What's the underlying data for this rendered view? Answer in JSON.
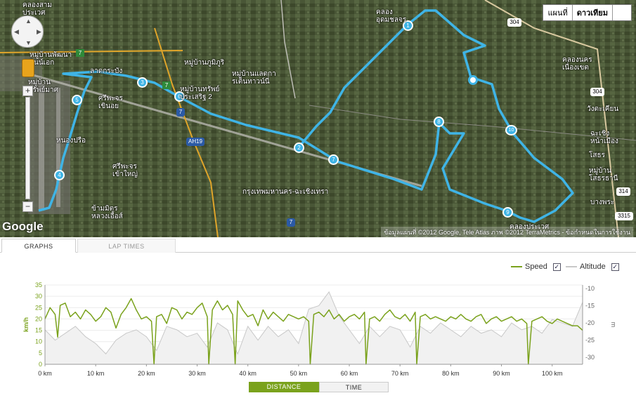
{
  "map": {
    "type_buttons": [
      "แผนที่",
      "ดาวเทียม"
    ],
    "active_type": "ดาวเทียม",
    "logo": "Google",
    "copyright": "ข้อมูลแผนที่ ©2012 Google, Tele Atlas ภาพ ©2012 TerraMetrics - ข้อกำหนดในการใช้งาน",
    "route_color": "#3fb4e6",
    "lap_markers": [
      "1",
      "2",
      "3",
      "4",
      "5",
      "6",
      "7",
      "8",
      "9",
      "10"
    ],
    "road_shields": [
      "7",
      "7",
      "7",
      "7",
      "AH19",
      "304",
      "304",
      "314",
      "3315"
    ],
    "place_labels": [
      "คลองสาม\nประเวศ",
      "ลาดกระบัง",
      "หมู่บ้านพัฒนา\nอินน์เอก",
      "หมู่บ้าน\nทรัพย์มาศ",
      "ศรีพะจร\nเขินอย",
      "หนองปรือ",
      "ศรีพะจร\nเข้าใหญ่",
      "ข้ามมิตร\nหลวงเอื้อส์",
      "หมู่บ้านภูมิภูริ",
      "หมู่บ้านแลตกา\nรเต็นทาวน์นี่",
      "หมู่บ้านทรัพย์\nประเสริฐ 2",
      "คลอง\nอุดมชลจร",
      "คลองนคร\nเนื่องเขต",
      "วังตะเคียน",
      "ฉะเชิง\nหน้าเมือง",
      "โสธร",
      "หมู่บ้าน\nโสธรธานี",
      "บางพระ",
      "คลองประเวศ",
      "กรุงเทพมหานคร-ฉะเชิงเทรา"
    ]
  },
  "tabs": {
    "graphs": "GRAPHS",
    "lap_times": "LAP TIMES"
  },
  "legend": {
    "speed": "Speed",
    "altitude": "Altitude",
    "speed_checked": "✓",
    "altitude_checked": "✓",
    "speed_color": "#7aa21c",
    "altitude_color": "#c8c8c8"
  },
  "toggle": {
    "distance": "DISTANCE",
    "time": "TIME"
  },
  "chart_data": {
    "type": "line",
    "xlabel": "",
    "x_tick_labels": [
      "0 km",
      "10 km",
      "20 km",
      "30 km",
      "40 km",
      "50 km",
      "60 km",
      "70 km",
      "80 km",
      "90 km",
      "100 km"
    ],
    "xlim": [
      0,
      106
    ],
    "left_axis": {
      "label": "km/h",
      "ylim": [
        0,
        35
      ],
      "ticks": [
        "0",
        "5",
        "10",
        "15",
        "20",
        "25",
        "30",
        "35"
      ]
    },
    "right_axis": {
      "label": "m",
      "ylim": [
        -32,
        -9
      ],
      "ticks": [
        "-10",
        "-15",
        "-20",
        "-25",
        "-30"
      ]
    },
    "series": [
      {
        "name": "Speed",
        "color": "#7aa21c",
        "x": [
          0,
          1,
          2,
          2.5,
          3,
          4,
          5,
          6,
          7,
          8,
          9,
          10,
          11,
          12,
          13,
          14,
          15,
          16,
          17,
          18,
          19,
          20,
          21,
          21.5,
          22,
          23,
          24,
          25,
          26,
          27,
          28,
          29,
          30,
          31,
          32,
          32.3,
          33,
          34,
          35,
          36,
          37,
          37.5,
          38,
          39,
          40,
          41,
          42,
          43,
          44,
          45,
          46,
          47,
          48,
          49,
          50,
          51,
          52,
          52.3,
          53,
          54,
          55,
          56,
          57,
          58,
          59,
          60,
          61,
          62,
          63,
          63.3,
          64,
          65,
          66,
          67,
          68,
          69,
          70,
          71,
          72,
          73,
          73.3,
          74,
          75,
          76,
          77,
          78,
          79,
          80,
          81,
          82,
          83,
          84,
          85,
          86,
          87,
          88,
          89,
          90,
          91,
          92,
          93,
          94,
          95,
          95.3,
          96,
          97,
          98,
          99,
          100,
          101,
          102,
          103,
          104,
          105,
          106
        ],
        "values": [
          20,
          25,
          22,
          12,
          26,
          27,
          21,
          23,
          20,
          24,
          22,
          19,
          21,
          25,
          23,
          16,
          22,
          25,
          29,
          24,
          20,
          21,
          19,
          0,
          21,
          22,
          18,
          25,
          24,
          20,
          23,
          22,
          25,
          27,
          21,
          0,
          24,
          28,
          24,
          26,
          22,
          0,
          28,
          24,
          21,
          22,
          17,
          24,
          20,
          23,
          21,
          19,
          22,
          21,
          20,
          21,
          19,
          0,
          22,
          23,
          21,
          24,
          20,
          22,
          19,
          21,
          22,
          20,
          23,
          0,
          20,
          21,
          19,
          22,
          24,
          21,
          20,
          22,
          19,
          23,
          0,
          21,
          22,
          20,
          21,
          20,
          19,
          21,
          20,
          22,
          20,
          19,
          21,
          22,
          18,
          20,
          21,
          19,
          20,
          21,
          19,
          20,
          18,
          0,
          19,
          20,
          21,
          19,
          18,
          20,
          19,
          18,
          17,
          17,
          15
        ]
      },
      {
        "name": "Altitude",
        "color": "#c8c8c8",
        "x": [
          0,
          2,
          4,
          6,
          8,
          10,
          12,
          14,
          16,
          18,
          20,
          22,
          24,
          26,
          28,
          30,
          32,
          34,
          36,
          38,
          40,
          42,
          44,
          46,
          48,
          50,
          52,
          54,
          56,
          58,
          60,
          62,
          64,
          66,
          68,
          70,
          72,
          74,
          76,
          78,
          80,
          82,
          84,
          86,
          88,
          90,
          92,
          94,
          96,
          98,
          100,
          102,
          104,
          106
        ],
        "values": [
          -22,
          -25,
          -23,
          -21,
          -24,
          -26,
          -29,
          -25,
          -23,
          -22,
          -24,
          -28,
          -21,
          -22,
          -24,
          -23,
          -27,
          -20,
          -22,
          -29,
          -21,
          -25,
          -21,
          -24,
          -22,
          -26,
          -16,
          -15,
          -11,
          -18,
          -22,
          -26,
          -21,
          -24,
          -21,
          -22,
          -27,
          -21,
          -23,
          -20,
          -22,
          -24,
          -21,
          -23,
          -22,
          -24,
          -20,
          -22,
          -21,
          -23,
          -19,
          -20,
          -21,
          -14
        ]
      }
    ]
  }
}
